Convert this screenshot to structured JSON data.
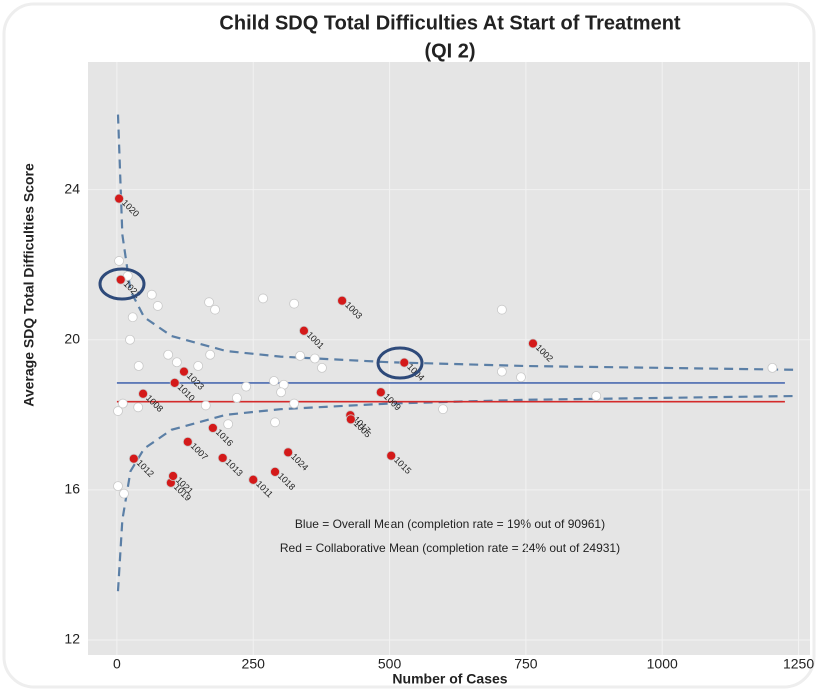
{
  "chart_data": {
    "type": "scatter",
    "title": "Child SDQ Total Difficulties At Start of Treatment",
    "subtitle": "(QI 2)",
    "x_label": "Number of Cases",
    "y_label": "Average SDQ Total Difficulties Score",
    "xlim": [
      -53,
      1271
    ],
    "ylim": [
      11.6,
      27.4
    ],
    "xticks": [
      0,
      250,
      500,
      750,
      1000,
      1250
    ],
    "yticks": [
      12,
      16,
      20,
      24
    ],
    "grid": true,
    "annotations": [
      "Blue = Overall Mean (completion rate = 19% out of 90961)",
      "Red = Collaborative Mean (completion rate = 24% out of 24931)"
    ],
    "series": [
      {
        "style": "dashed",
        "color": "#5b7fa6",
        "x": [
          2,
          10,
          25,
          50,
          100,
          200,
          300,
          500,
          750,
          1000,
          1240
        ],
        "values": [
          26.0,
          22.8,
          21.3,
          20.6,
          20.1,
          19.7,
          19.55,
          19.4,
          19.3,
          19.25,
          19.2
        ]
      },
      {
        "style": "dashed",
        "color": "#5b7fa6",
        "x": [
          2,
          10,
          25,
          50,
          100,
          200,
          300,
          500,
          750,
          1000,
          1240
        ],
        "values": [
          13.3,
          15.2,
          16.5,
          17.1,
          17.6,
          18.0,
          18.15,
          18.3,
          18.4,
          18.45,
          18.5
        ]
      },
      {
        "style": "line",
        "color": "#4a6ab0",
        "x": [
          0,
          1225
        ],
        "values": [
          18.85,
          18.85
        ]
      },
      {
        "style": "line",
        "color": "#d42a2a",
        "x": [
          0,
          1225
        ],
        "values": [
          18.35,
          18.35
        ]
      },
      {
        "style": "points",
        "color": "#ffffff",
        "x": [
          4,
          20,
          64,
          75,
          29,
          24,
          40,
          94,
          110,
          149,
          171,
          169,
          180,
          268,
          325,
          336,
          363,
          376,
          288,
          306,
          301,
          237,
          220,
          163,
          204,
          290,
          325,
          11,
          2,
          39,
          2,
          13,
          706,
          706,
          741,
          598,
          879,
          1202
        ],
        "values": [
          22.1,
          21.7,
          21.2,
          20.9,
          20.6,
          20.0,
          19.3,
          19.6,
          19.4,
          19.3,
          19.6,
          21.0,
          20.8,
          21.1,
          20.96,
          19.57,
          19.5,
          19.25,
          18.9,
          18.8,
          18.6,
          18.75,
          18.45,
          18.25,
          17.75,
          17.8,
          18.3,
          18.3,
          18.1,
          18.2,
          16.1,
          15.9,
          20.8,
          19.15,
          19.0,
          18.15,
          18.5,
          19.25
        ]
      },
      {
        "style": "points",
        "color": "#d41a1a",
        "labels": [
          "1020",
          "1022",
          "1001",
          "1003",
          "1004",
          "1002",
          "1008",
          "1010",
          "1023",
          "1017",
          "1005",
          "1009",
          "1012",
          "1007",
          "1016",
          "1013",
          "1024",
          "1015",
          "1011",
          "1018",
          "1019",
          "1021"
        ],
        "x": [
          4,
          7,
          343,
          413,
          527,
          763,
          48,
          106,
          123,
          428,
          429,
          484,
          31,
          130,
          176,
          194,
          314,
          503,
          250,
          290,
          99,
          103
        ],
        "values": [
          23.76,
          21.6,
          20.24,
          21.04,
          19.39,
          19.9,
          18.56,
          18.85,
          19.15,
          17.99,
          17.88,
          18.6,
          16.83,
          17.28,
          17.65,
          16.85,
          17.0,
          16.91,
          16.27,
          16.48,
          16.19,
          16.37
        ]
      }
    ]
  }
}
